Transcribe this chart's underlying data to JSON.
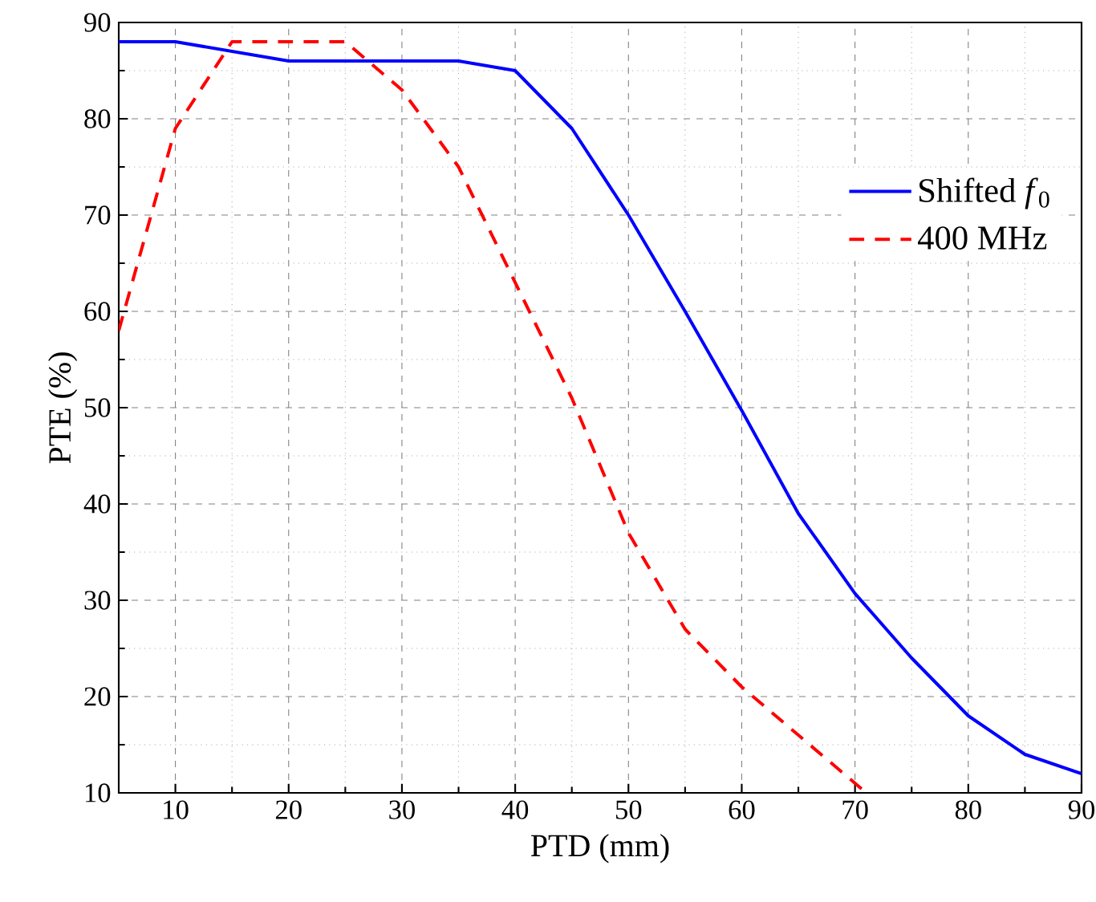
{
  "chart_data": {
    "type": "line",
    "xlabel": "PTD (mm)",
    "ylabel": "PTE (%)",
    "xlim": [
      5,
      90
    ],
    "ylim": [
      10,
      90
    ],
    "xticks": [
      10,
      20,
      30,
      40,
      50,
      60,
      70,
      80,
      90
    ],
    "yticks": [
      10,
      20,
      30,
      40,
      50,
      60,
      70,
      80,
      90
    ],
    "grid": true,
    "legend": "right",
    "marker": "none",
    "series": [
      {
        "name": "Shifted *f*$_{0}$",
        "color": "#0000ff",
        "line_style": "solid",
        "x": [
          5,
          10,
          15,
          20,
          25,
          30,
          35,
          40,
          45,
          50,
          55,
          60,
          65,
          70,
          75,
          80,
          85,
          90
        ],
        "values": [
          88,
          88,
          87,
          86,
          86,
          86,
          86,
          85,
          79,
          70,
          60,
          49.7,
          39,
          30.7,
          24,
          18,
          14,
          12
        ]
      },
      {
        "name": "400 MHz",
        "color": "#ff0000",
        "line_style": "dashed",
        "x": [
          5,
          10,
          15,
          20,
          25,
          30,
          35,
          40,
          45,
          50,
          55,
          60,
          65,
          70,
          71
        ],
        "values": [
          58,
          79,
          88,
          88,
          88,
          83,
          75,
          63,
          51,
          37,
          27,
          21,
          16,
          11,
          10
        ]
      }
    ]
  }
}
